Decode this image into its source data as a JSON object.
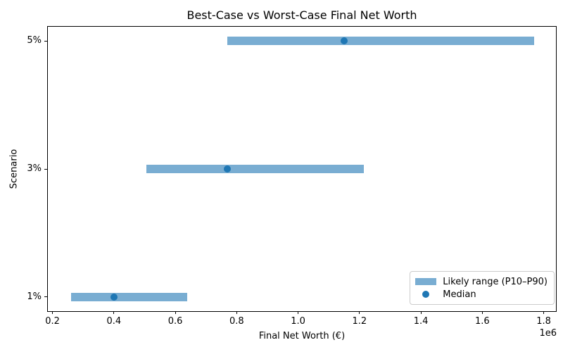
{
  "chart_data": {
    "type": "bar",
    "orientation": "horizontal",
    "title": "Best-Case vs Worst-Case Final Net Worth",
    "xlabel": "Final Net Worth (€)",
    "ylabel": "Scenario",
    "x_offset_label": "1e6",
    "categories": [
      "1%",
      "3%",
      "5%"
    ],
    "rows": [
      {
        "scenario": "1%",
        "p10": 260000,
        "median": 400000,
        "p90": 640000
      },
      {
        "scenario": "3%",
        "p10": 505000,
        "median": 770000,
        "p90": 1215000
      },
      {
        "scenario": "5%",
        "p10": 770000,
        "median": 1150000,
        "p90": 1770000
      }
    ],
    "series": [
      {
        "name": "Likely range (P10–P90)",
        "type": "range"
      },
      {
        "name": "Median",
        "type": "point"
      }
    ],
    "xlim": [
      185000,
      1840000
    ],
    "ylim": [
      -0.11,
      2.11
    ],
    "xticks": [
      200000,
      400000,
      600000,
      800000,
      1000000,
      1200000,
      1400000,
      1600000,
      1800000
    ],
    "xtick_scale": 1000000,
    "grid": false,
    "legend": {
      "position": "lower right",
      "items": [
        {
          "label": "Likely range (P10–P90)",
          "marker": "bar-swatch"
        },
        {
          "label": "Median",
          "marker": "dot"
        }
      ]
    },
    "colors": {
      "range_bar": "rgba(31,119,180,0.6)",
      "median_dot": "#1f77b4",
      "text": "#000000",
      "spine": "#000000"
    }
  }
}
